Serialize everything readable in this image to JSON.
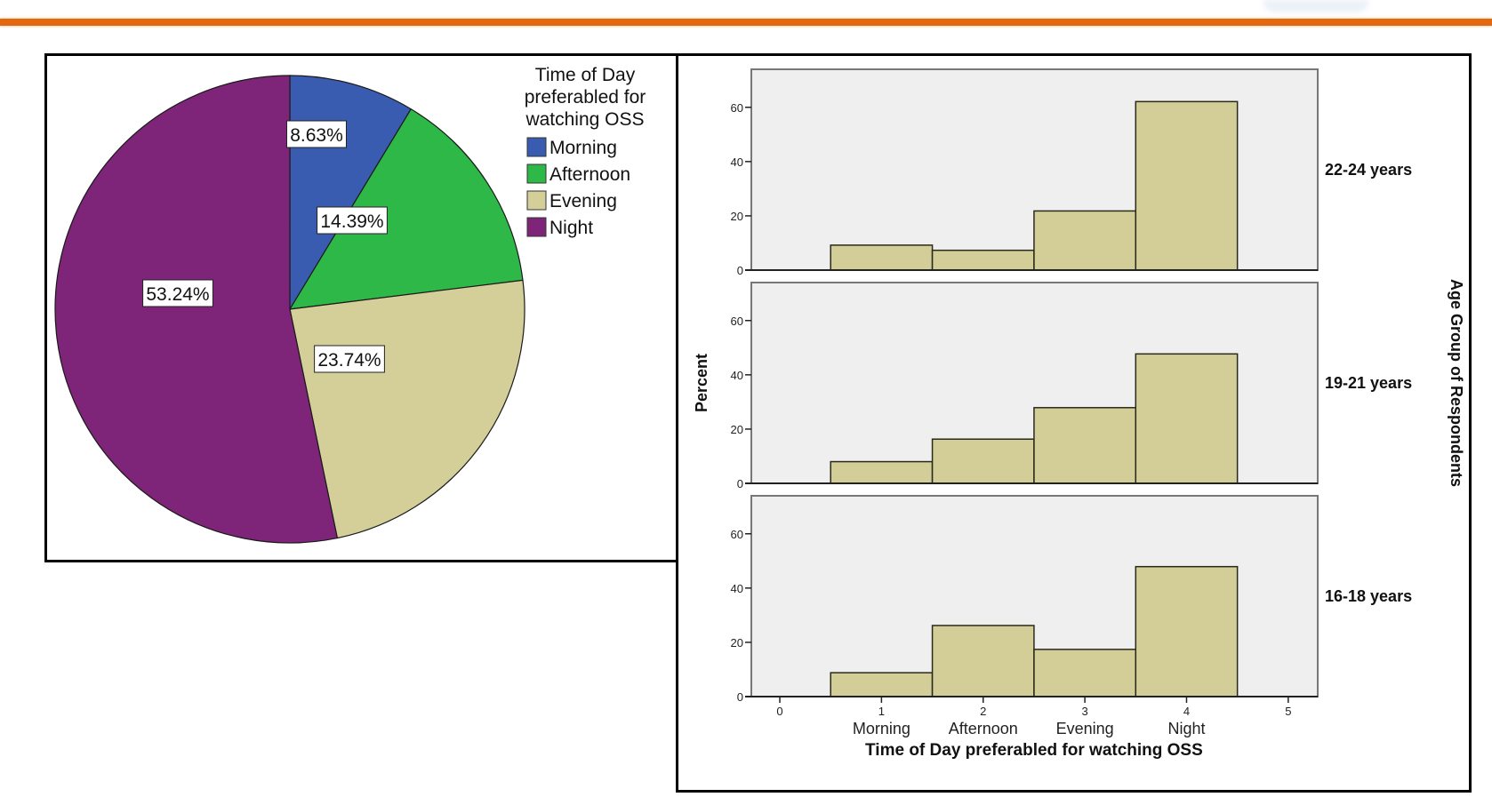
{
  "header": {
    "accent_color": "#e2690f"
  },
  "chart_data": [
    {
      "type": "pie",
      "title": "Time of Day preferabled for watching OSS",
      "legend_title": [
        "Time of Day",
        "preferabled for",
        "watching OSS"
      ],
      "legend_position": "top-right",
      "categories": [
        "Morning",
        "Afternoon",
        "Evening",
        "Night"
      ],
      "values": [
        8.63,
        14.39,
        23.74,
        53.24
      ],
      "labels": [
        "8.63%",
        "14.39%",
        "23.74%",
        "53.24%"
      ],
      "colors": [
        "#3a5cb0",
        "#2eb847",
        "#d4cf99",
        "#7e2479"
      ],
      "start": "12 o'clock",
      "direction": "clockwise"
    },
    {
      "type": "bar",
      "subtype": "faceted-histogram",
      "xlabel": "Time of Day preferabled for watching OSS",
      "ylabel": "Percent",
      "facet_label": "Age Group of Respondents",
      "x_ticks": [
        "0",
        "1",
        "2",
        "3",
        "4",
        "5"
      ],
      "x_tick_values": [
        0,
        1,
        2,
        3,
        4,
        5
      ],
      "categories": [
        "Morning",
        "Afternoon",
        "Evening",
        "Night"
      ],
      "category_x": [
        1,
        2,
        3,
        4
      ],
      "xlim": [
        -0.28,
        5.29
      ],
      "ylim": [
        0,
        74
      ],
      "y_ticks": [
        "0",
        "20",
        "40",
        "60"
      ],
      "y_tick_values": [
        0,
        20,
        40,
        60
      ],
      "bar_color": "#d3cd98",
      "panel_color": "#efefef",
      "series": [
        {
          "name": "22-24 years",
          "values": [
            9.2,
            7.3,
            21.8,
            62.1
          ]
        },
        {
          "name": "19-21 years",
          "values": [
            8.0,
            16.3,
            27.9,
            47.7
          ]
        },
        {
          "name": "16-18 years",
          "values": [
            8.8,
            26.2,
            17.4,
            47.9
          ]
        }
      ]
    }
  ]
}
